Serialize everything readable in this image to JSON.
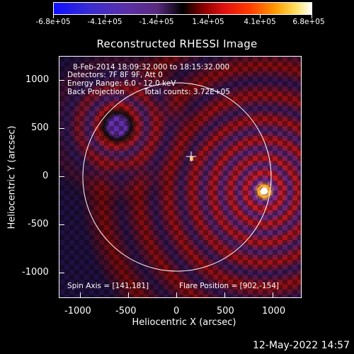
{
  "colorbar": {
    "labels": [
      "-6.8e+05",
      "-4.1e+05",
      "-1.4e+05",
      "1.4e+05",
      "4.1e+05",
      "6.8e+05"
    ]
  },
  "image": {
    "title": "Reconstructed RHESSI Image",
    "xlabel": "Heliocentric X (arcsec)",
    "ylabel": "Heliocentric Y (arcsec)",
    "xticks": [
      "-1000",
      "-500",
      "0",
      "500",
      "1000"
    ],
    "yticks": [
      "1000",
      "500",
      "0",
      "-500",
      "-1000"
    ],
    "info": {
      "line1": "8-Feb-2014 18:09:32.000 to 18:15:32.000",
      "line2": "Detectors: 7F 8F 9F, Att 0",
      "line3": "Energy Range: 6.0 - 12.0 keV",
      "line4a": "Back Projection",
      "line4b": "Total counts: 3.72E+05"
    },
    "spin_axis": "Spin Axis = [141,181]",
    "flare_position": "Flare Position = [902,-154]",
    "colors": {
      "positive": "#e01010",
      "negative": "#5a2a9a",
      "peak": "#ffffff",
      "limb": "#ffffff"
    }
  },
  "timestamp": "12-May-2022 14:57"
}
